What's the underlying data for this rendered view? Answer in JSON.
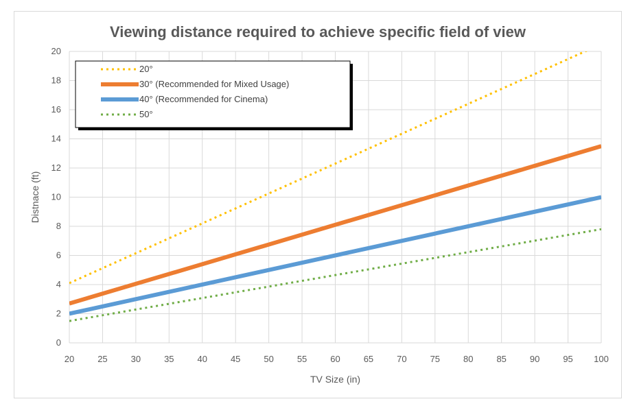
{
  "chart_data": {
    "type": "line",
    "title": "Viewing distance required to achieve specific field of view",
    "xlabel": "TV Size (in)",
    "ylabel": "Distnace (ft)",
    "xlim": [
      20,
      100
    ],
    "ylim": [
      0,
      20
    ],
    "x_ticks": [
      20,
      25,
      30,
      35,
      40,
      45,
      50,
      55,
      60,
      65,
      70,
      75,
      80,
      85,
      90,
      95,
      100
    ],
    "y_ticks": [
      0,
      2,
      4,
      6,
      8,
      10,
      12,
      14,
      16,
      18,
      20
    ],
    "grid": true,
    "legend_position": "top-left",
    "series": [
      {
        "name": "20°",
        "color": "#FFC000",
        "style": "dotted",
        "x": [
          20,
          100
        ],
        "y": [
          4.1,
          20.5
        ]
      },
      {
        "name": "30° (Recommended for Mixed Usage)",
        "color": "#ED7D31",
        "style": "solid",
        "x": [
          20,
          100
        ],
        "y": [
          2.7,
          13.5
        ]
      },
      {
        "name": "40° (Recommended for Cinema)",
        "color": "#5B9BD5",
        "style": "solid",
        "x": [
          20,
          100
        ],
        "y": [
          2.0,
          10.0
        ]
      },
      {
        "name": "50°",
        "color": "#70AD47",
        "style": "dotted",
        "x": [
          20,
          100
        ],
        "y": [
          1.5,
          7.8
        ]
      }
    ]
  }
}
